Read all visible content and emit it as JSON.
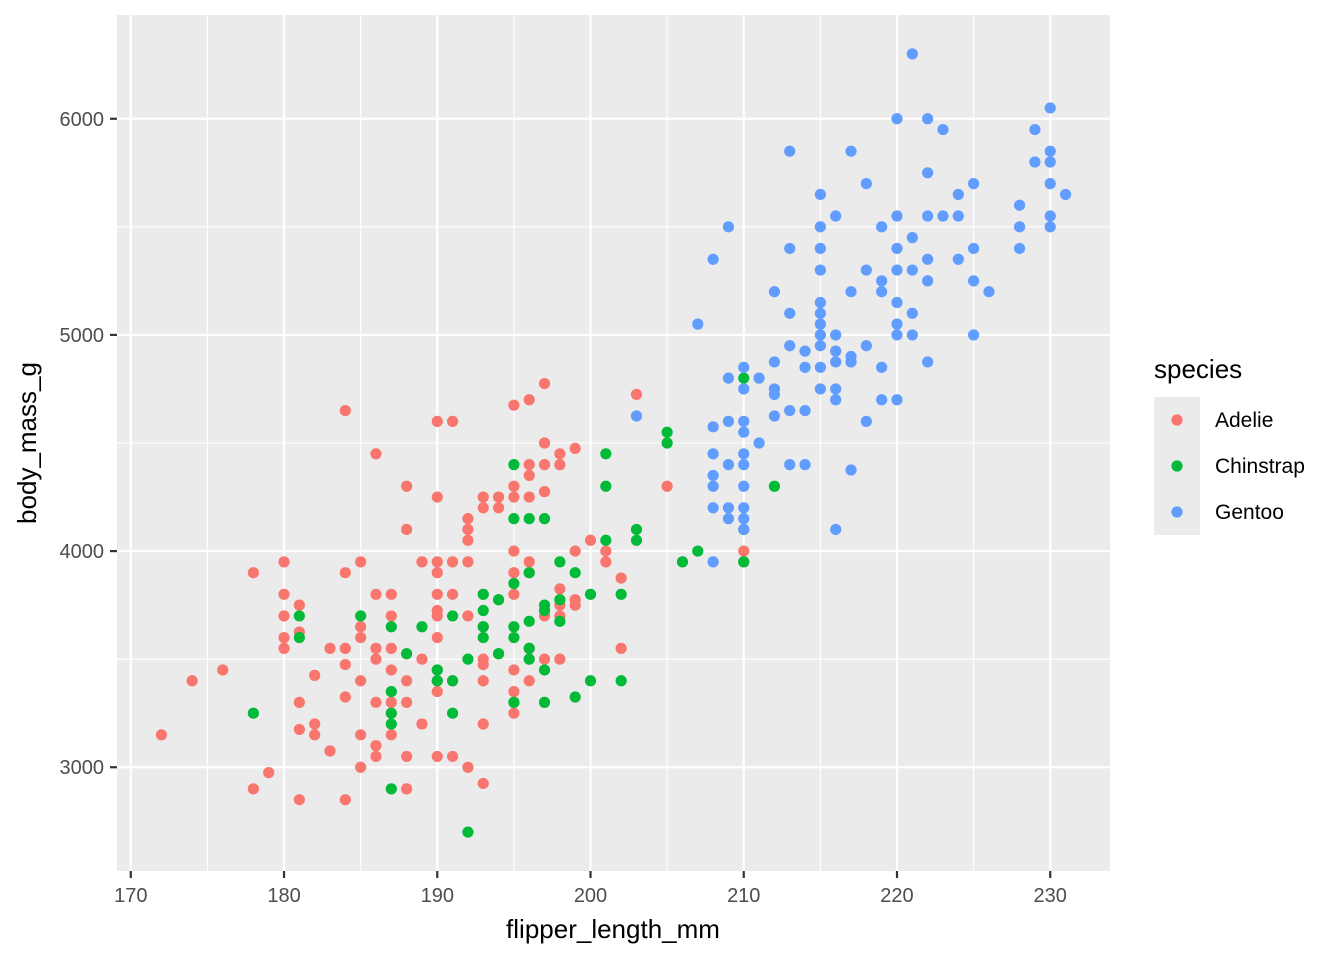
{
  "chart_data": {
    "type": "scatter",
    "xlabel": "flipper_length_mm",
    "ylabel": "body_mass_g",
    "xlim": [
      169.1,
      233.9
    ],
    "ylim": [
      2520,
      6480
    ],
    "x_ticks": [
      170,
      180,
      190,
      200,
      210,
      220,
      230
    ],
    "y_ticks": [
      3000,
      4000,
      5000,
      6000
    ],
    "grid": true,
    "legend": {
      "title": "species",
      "placement": "right"
    },
    "series": [
      {
        "name": "Adelie",
        "color": "#F8766D",
        "points": [
          [
            172,
            3150
          ],
          [
            174,
            3400
          ],
          [
            176,
            3450
          ],
          [
            178,
            3900
          ],
          [
            178,
            2900
          ],
          [
            179,
            2975
          ],
          [
            180,
            3950
          ],
          [
            180,
            3800
          ],
          [
            180,
            3700
          ],
          [
            180,
            3600
          ],
          [
            180,
            3550
          ],
          [
            181,
            3750
          ],
          [
            181,
            3625
          ],
          [
            181,
            3300
          ],
          [
            181,
            3175
          ],
          [
            181,
            2850
          ],
          [
            182,
            3425
          ],
          [
            182,
            3200
          ],
          [
            182,
            3150
          ],
          [
            183,
            3550
          ],
          [
            183,
            3075
          ],
          [
            184,
            4650
          ],
          [
            184,
            3900
          ],
          [
            184,
            3550
          ],
          [
            184,
            3475
          ],
          [
            184,
            3325
          ],
          [
            184,
            2850
          ],
          [
            185,
            3950
          ],
          [
            185,
            3650
          ],
          [
            185,
            3600
          ],
          [
            185,
            3400
          ],
          [
            185,
            3150
          ],
          [
            185,
            3000
          ],
          [
            186,
            4450
          ],
          [
            186,
            3800
          ],
          [
            186,
            3550
          ],
          [
            186,
            3500
          ],
          [
            186,
            3300
          ],
          [
            186,
            3100
          ],
          [
            186,
            3050
          ],
          [
            187,
            3800
          ],
          [
            187,
            3700
          ],
          [
            187,
            3550
          ],
          [
            187,
            3450
          ],
          [
            187,
            3300
          ],
          [
            187,
            3250
          ],
          [
            187,
            3150
          ],
          [
            188,
            4300
          ],
          [
            188,
            4100
          ],
          [
            188,
            3400
          ],
          [
            188,
            3300
          ],
          [
            188,
            3050
          ],
          [
            188,
            2900
          ],
          [
            189,
            3950
          ],
          [
            189,
            3500
          ],
          [
            189,
            3200
          ],
          [
            190,
            4600
          ],
          [
            190,
            4250
          ],
          [
            190,
            3950
          ],
          [
            190,
            3900
          ],
          [
            190,
            3800
          ],
          [
            190,
            3725
          ],
          [
            190,
            3700
          ],
          [
            190,
            3600
          ],
          [
            190,
            3450
          ],
          [
            190,
            3400
          ],
          [
            190,
            3350
          ],
          [
            190,
            3050
          ],
          [
            191,
            4600
          ],
          [
            191,
            3950
          ],
          [
            191,
            3800
          ],
          [
            191,
            3400
          ],
          [
            191,
            3050
          ],
          [
            192,
            4150
          ],
          [
            192,
            4100
          ],
          [
            192,
            4050
          ],
          [
            192,
            3950
          ],
          [
            192,
            3700
          ],
          [
            192,
            3000
          ],
          [
            193,
            4250
          ],
          [
            193,
            4200
          ],
          [
            193,
            3800
          ],
          [
            193,
            3650
          ],
          [
            193,
            3500
          ],
          [
            193,
            3475
          ],
          [
            193,
            3400
          ],
          [
            193,
            3200
          ],
          [
            193,
            2925
          ],
          [
            194,
            4250
          ],
          [
            194,
            4200
          ],
          [
            194,
            3775
          ],
          [
            194,
            3525
          ],
          [
            195,
            4675
          ],
          [
            195,
            4300
          ],
          [
            195,
            4250
          ],
          [
            195,
            4000
          ],
          [
            195,
            3900
          ],
          [
            195,
            3800
          ],
          [
            195,
            3450
          ],
          [
            195,
            3350
          ],
          [
            195,
            3300
          ],
          [
            195,
            3250
          ],
          [
            196,
            4700
          ],
          [
            196,
            4400
          ],
          [
            196,
            4350
          ],
          [
            196,
            4250
          ],
          [
            196,
            3950
          ],
          [
            196,
            3900
          ],
          [
            196,
            3550
          ],
          [
            196,
            3500
          ],
          [
            196,
            3400
          ],
          [
            197,
            4775
          ],
          [
            197,
            4500
          ],
          [
            197,
            4400
          ],
          [
            197,
            4275
          ],
          [
            197,
            3700
          ],
          [
            197,
            3500
          ],
          [
            198,
            4450
          ],
          [
            198,
            4400
          ],
          [
            198,
            3825
          ],
          [
            198,
            3750
          ],
          [
            198,
            3700
          ],
          [
            198,
            3500
          ],
          [
            199,
            4475
          ],
          [
            199,
            4000
          ],
          [
            199,
            3775
          ],
          [
            199,
            3750
          ],
          [
            200,
            4050
          ],
          [
            201,
            4000
          ],
          [
            201,
            3950
          ],
          [
            202,
            3875
          ],
          [
            202,
            3550
          ],
          [
            203,
            4725
          ],
          [
            205,
            4300
          ],
          [
            210,
            4000
          ],
          [
            210,
            3950
          ]
        ]
      },
      {
        "name": "Chinstrap",
        "color": "#00BA38",
        "points": [
          [
            178,
            3250
          ],
          [
            181,
            3700
          ],
          [
            181,
            3600
          ],
          [
            185,
            3700
          ],
          [
            187,
            3650
          ],
          [
            187,
            3350
          ],
          [
            187,
            3250
          ],
          [
            187,
            3200
          ],
          [
            187,
            2900
          ],
          [
            188,
            3525
          ],
          [
            189,
            3650
          ],
          [
            190,
            3450
          ],
          [
            190,
            3400
          ],
          [
            191,
            3700
          ],
          [
            191,
            3400
          ],
          [
            191,
            3250
          ],
          [
            192,
            3500
          ],
          [
            192,
            2700
          ],
          [
            193,
            3800
          ],
          [
            193,
            3725
          ],
          [
            193,
            3650
          ],
          [
            193,
            3600
          ],
          [
            194,
            3775
          ],
          [
            194,
            3525
          ],
          [
            195,
            4400
          ],
          [
            195,
            4150
          ],
          [
            195,
            3850
          ],
          [
            195,
            3650
          ],
          [
            195,
            3600
          ],
          [
            195,
            3300
          ],
          [
            196,
            4150
          ],
          [
            196,
            3900
          ],
          [
            196,
            3675
          ],
          [
            196,
            3550
          ],
          [
            196,
            3500
          ],
          [
            197,
            4150
          ],
          [
            197,
            3750
          ],
          [
            197,
            3725
          ],
          [
            197,
            3450
          ],
          [
            197,
            3300
          ],
          [
            198,
            3950
          ],
          [
            198,
            3775
          ],
          [
            198,
            3675
          ],
          [
            199,
            3900
          ],
          [
            199,
            3325
          ],
          [
            200,
            3800
          ],
          [
            200,
            3400
          ],
          [
            201,
            4450
          ],
          [
            201,
            4300
          ],
          [
            201,
            4050
          ],
          [
            202,
            3800
          ],
          [
            202,
            3400
          ],
          [
            203,
            4100
          ],
          [
            203,
            4050
          ],
          [
            205,
            4550
          ],
          [
            205,
            4500
          ],
          [
            206,
            3950
          ],
          [
            207,
            4000
          ],
          [
            210,
            4800
          ],
          [
            210,
            4100
          ],
          [
            210,
            3950
          ],
          [
            212,
            4300
          ]
        ]
      },
      {
        "name": "Gentoo",
        "color": "#619CFF",
        "points": [
          [
            203,
            4625
          ],
          [
            207,
            5050
          ],
          [
            208,
            5350
          ],
          [
            208,
            4575
          ],
          [
            208,
            4450
          ],
          [
            208,
            4350
          ],
          [
            208,
            4300
          ],
          [
            208,
            4200
          ],
          [
            208,
            3950
          ],
          [
            209,
            5500
          ],
          [
            209,
            4800
          ],
          [
            209,
            4600
          ],
          [
            209,
            4400
          ],
          [
            209,
            4200
          ],
          [
            209,
            4150
          ],
          [
            210,
            4850
          ],
          [
            210,
            4750
          ],
          [
            210,
            4600
          ],
          [
            210,
            4550
          ],
          [
            210,
            4450
          ],
          [
            210,
            4400
          ],
          [
            210,
            4300
          ],
          [
            210,
            4200
          ],
          [
            210,
            4150
          ],
          [
            210,
            4100
          ],
          [
            211,
            4800
          ],
          [
            211,
            4500
          ],
          [
            212,
            5200
          ],
          [
            212,
            4875
          ],
          [
            212,
            4750
          ],
          [
            212,
            4725
          ],
          [
            212,
            4625
          ],
          [
            213,
            5850
          ],
          [
            213,
            5400
          ],
          [
            213,
            5100
          ],
          [
            213,
            4950
          ],
          [
            213,
            4650
          ],
          [
            213,
            4400
          ],
          [
            214,
            4925
          ],
          [
            214,
            4850
          ],
          [
            214,
            4650
          ],
          [
            214,
            4400
          ],
          [
            215,
            5650
          ],
          [
            215,
            5500
          ],
          [
            215,
            5400
          ],
          [
            215,
            5300
          ],
          [
            215,
            5150
          ],
          [
            215,
            5100
          ],
          [
            215,
            5050
          ],
          [
            215,
            5000
          ],
          [
            215,
            4950
          ],
          [
            215,
            4850
          ],
          [
            215,
            4750
          ],
          [
            216,
            5550
          ],
          [
            216,
            5000
          ],
          [
            216,
            4925
          ],
          [
            216,
            4875
          ],
          [
            216,
            4750
          ],
          [
            216,
            4700
          ],
          [
            216,
            4100
          ],
          [
            217,
            5850
          ],
          [
            217,
            5200
          ],
          [
            217,
            4900
          ],
          [
            217,
            4875
          ],
          [
            217,
            4375
          ],
          [
            218,
            5700
          ],
          [
            218,
            5300
          ],
          [
            218,
            4950
          ],
          [
            218,
            4600
          ],
          [
            219,
            5500
          ],
          [
            219,
            5250
          ],
          [
            219,
            5200
          ],
          [
            219,
            4850
          ],
          [
            219,
            4700
          ],
          [
            220,
            6000
          ],
          [
            220,
            5550
          ],
          [
            220,
            5400
          ],
          [
            220,
            5300
          ],
          [
            220,
            5150
          ],
          [
            220,
            5050
          ],
          [
            220,
            5000
          ],
          [
            220,
            4700
          ],
          [
            221,
            6300
          ],
          [
            221,
            5450
          ],
          [
            221,
            5300
          ],
          [
            221,
            5100
          ],
          [
            221,
            5000
          ],
          [
            222,
            6000
          ],
          [
            222,
            5750
          ],
          [
            222,
            5550
          ],
          [
            222,
            5350
          ],
          [
            222,
            5250
          ],
          [
            222,
            4875
          ],
          [
            223,
            5950
          ],
          [
            223,
            5550
          ],
          [
            224,
            5650
          ],
          [
            224,
            5550
          ],
          [
            224,
            5350
          ],
          [
            225,
            5700
          ],
          [
            225,
            5400
          ],
          [
            225,
            5250
          ],
          [
            225,
            5000
          ],
          [
            226,
            5200
          ],
          [
            228,
            5600
          ],
          [
            228,
            5500
          ],
          [
            228,
            5400
          ],
          [
            229,
            5950
          ],
          [
            229,
            5800
          ],
          [
            230,
            6050
          ],
          [
            230,
            5850
          ],
          [
            230,
            5800
          ],
          [
            230,
            5700
          ],
          [
            230,
            5550
          ],
          [
            230,
            5500
          ],
          [
            231,
            5650
          ]
        ]
      }
    ]
  }
}
